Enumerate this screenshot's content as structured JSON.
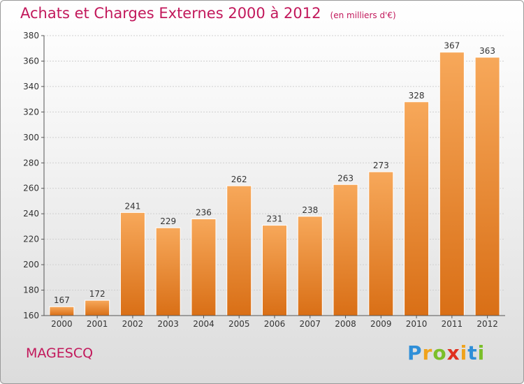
{
  "title": "Achats et Charges Externes 2000 à 2012",
  "unit_note": "(en milliers d'€)",
  "place": "MAGESCQ",
  "logo": {
    "letters": [
      "P",
      "r",
      "o",
      "x",
      "i",
      "t",
      "i"
    ],
    "colors": [
      "#2f8fd8",
      "#f0a31c",
      "#7bbf2a",
      "#e0311f",
      "#f0a31c",
      "#2f8fd8",
      "#7bbf2a"
    ]
  },
  "colors": {
    "bar_top": "#f7a85a",
    "bar_bottom": "#d96f16",
    "title": "#c2185b"
  },
  "chart_data": {
    "type": "bar",
    "title": "Achats et Charges Externes 2000 à 2012",
    "categories": [
      "2000",
      "2001",
      "2002",
      "2003",
      "2004",
      "2005",
      "2006",
      "2007",
      "2008",
      "2009",
      "2010",
      "2011",
      "2012"
    ],
    "values": [
      167,
      172,
      241,
      229,
      236,
      262,
      231,
      238,
      263,
      273,
      328,
      367,
      363
    ],
    "ylim": [
      160,
      380
    ],
    "yticks": [
      160,
      180,
      200,
      220,
      240,
      260,
      280,
      300,
      320,
      340,
      360,
      380
    ],
    "grid": true
  }
}
